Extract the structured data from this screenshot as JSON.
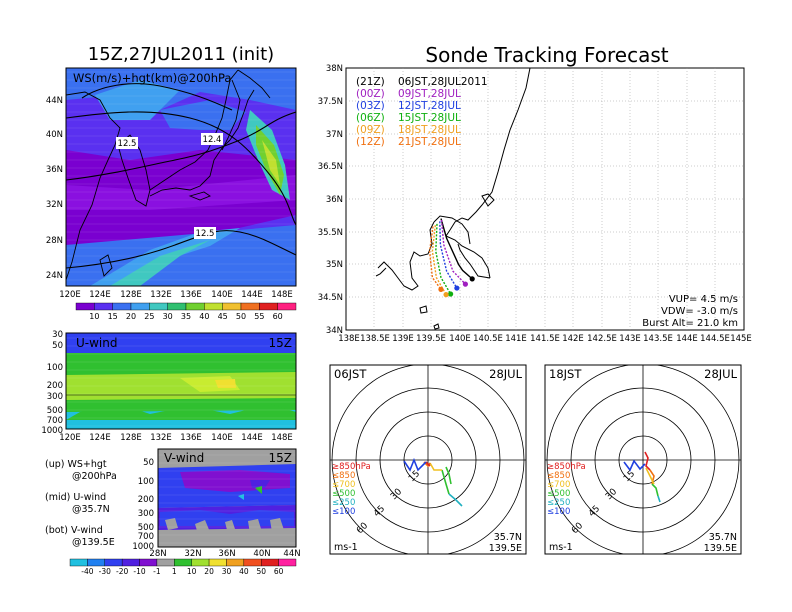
{
  "left_title": "15Z,27JUL2011 (init)",
  "right_title": "Sonde Tracking Forecast",
  "colors": {
    "bg": "#ffffff",
    "frame": "#000000",
    "track_21z": "#000000",
    "track_00z": "#a020c0",
    "track_03z": "#2040e0",
    "track_06z": "#10b010",
    "track_09z": "#f0a020",
    "track_12z": "#f07010"
  },
  "panels": {
    "ws": {
      "label": "WS(m/s)+hgt(km)@200hPa",
      "lat_labels": [
        "44N",
        "40N",
        "36N",
        "32N",
        "28N",
        "24N"
      ],
      "lon_labels": [
        "120E",
        "124E",
        "128E",
        "132E",
        "136E",
        "140E",
        "144E",
        "148E"
      ],
      "contour_labels": [
        "12.5",
        "12.4",
        "12.5"
      ]
    },
    "ws_colorbar": {
      "labels": [
        "10",
        "15",
        "20",
        "25",
        "30",
        "35",
        "40",
        "45",
        "50",
        "55",
        "60"
      ],
      "colors": [
        "#7a00d0",
        "#5a30f0",
        "#3a70f0",
        "#40a0f0",
        "#40c8c0",
        "#30c070",
        "#70d030",
        "#c0e030",
        "#f0c030",
        "#f07020",
        "#e02020",
        "#ff2080"
      ]
    },
    "uwind": {
      "label": "U-wind",
      "time": "15Z",
      "p_labels": [
        "30",
        "50",
        "100",
        "200",
        "300",
        "500",
        "700",
        "1000"
      ],
      "lon_labels": [
        "120E",
        "124E",
        "128E",
        "132E",
        "136E",
        "140E",
        "144E",
        "148E"
      ]
    },
    "vwind": {
      "label": "V-wind",
      "time": "15Z",
      "p_labels": [
        "50",
        "100",
        "200",
        "300",
        "500",
        "700",
        "1000"
      ],
      "lat_labels": [
        "28N",
        "32N",
        "36N",
        "40N",
        "44N"
      ]
    },
    "wind_colorbar": {
      "labels": [
        "-40",
        "-30",
        "-20",
        "-10",
        "-1",
        "1",
        "10",
        "20",
        "30",
        "40",
        "50",
        "60"
      ],
      "colors": [
        "#20c0e0",
        "#2080f0",
        "#3040f0",
        "#5020e0",
        "#8010d0",
        "#a0a0a0",
        "#30c030",
        "#a0e030",
        "#f0e030",
        "#f0a020",
        "#f05020",
        "#e02020",
        "#ff20a0"
      ]
    },
    "legend_notes": [
      {
        "label": "(up) WS+hgt",
        "sub": "@200hPa"
      },
      {
        "label": "(mid) U-wind",
        "sub": "@35.7N"
      },
      {
        "label": "(bot) V-wind",
        "sub": "@139.5E"
      }
    ],
    "track_map": {
      "lat_labels": [
        "38N",
        "37.5N",
        "37N",
        "36.5N",
        "36N",
        "35.5N",
        "35N",
        "34.5N",
        "34N"
      ],
      "lon_labels": [
        "138E",
        "138.5E",
        "139E",
        "139.5E",
        "140E",
        "140.5E",
        "141E",
        "141.5E",
        "142E",
        "142.5E",
        "143E",
        "143.5E",
        "144E",
        "144.5E",
        "145E"
      ],
      "launches": [
        {
          "code": "(21Z)",
          "time": "06JST,28JUL2011",
          "color": "#000000"
        },
        {
          "code": "(00Z)",
          "time": "09JST,28JUL",
          "color": "#a020c0"
        },
        {
          "code": "(03Z)",
          "time": "12JST,28JUL",
          "color": "#2040e0"
        },
        {
          "code": "(06Z)",
          "time": "15JST,28JUL",
          "color": "#10b010"
        },
        {
          "code": "(09Z)",
          "time": "18JST,28JUL",
          "color": "#f0a020"
        },
        {
          "code": "(12Z)",
          "time": "21JST,28JUL",
          "color": "#f07010"
        }
      ],
      "vup": "VUP=  4.5  m/s",
      "vdw": "VDW= -3.0  m/s",
      "burst": "Burst Alt= 21.0  km"
    },
    "hodo_left": {
      "time": "06JST",
      "date": "28JUL",
      "ring_labels": [
        "15",
        "30",
        "45",
        "60"
      ],
      "levels": [
        {
          "label": "≥850hPa",
          "color": "#e02020"
        },
        {
          "label": "≤850",
          "color": "#f07010"
        },
        {
          "label": "≤700",
          "color": "#f0c020"
        },
        {
          "label": "≤500",
          "color": "#30c030"
        },
        {
          "label": "≤250",
          "color": "#20b0c0"
        },
        {
          "label": "≤100",
          "color": "#2040e0"
        }
      ],
      "unit": "ms-1",
      "lat": "35.7N",
      "lon": "139.5E"
    },
    "hodo_right": {
      "time": "18JST",
      "date": "28JUL",
      "ring_labels": [
        "15",
        "30",
        "45",
        "60"
      ],
      "levels": [
        {
          "label": "≥850hPa",
          "color": "#e02020"
        },
        {
          "label": "≤850",
          "color": "#f07010"
        },
        {
          "label": "≤700",
          "color": "#f0c020"
        },
        {
          "label": "≤500",
          "color": "#30c030"
        },
        {
          "label": "≤250",
          "color": "#20b0c0"
        },
        {
          "label": "≤100",
          "color": "#2040e0"
        }
      ],
      "unit": "ms-1",
      "lat": "35.7N",
      "lon": "139.5E"
    }
  },
  "chart_data": [
    {
      "type": "heatmap",
      "title": "WS(m/s)+hgt(km)@200hPa",
      "x_range": [
        "120E",
        "150E"
      ],
      "y_range": [
        "22N",
        "47N"
      ],
      "contour_values": [
        12.5,
        12.4,
        12.5
      ]
    },
    {
      "type": "heatmap",
      "title": "U-wind",
      "x_range": [
        "120E",
        "150E"
      ],
      "y_range_hPa": [
        1000,
        30
      ]
    },
    {
      "type": "heatmap",
      "title": "V-wind",
      "x_range": [
        "28N",
        "44N"
      ],
      "y_range_hPa": [
        1000,
        50
      ]
    },
    {
      "type": "line",
      "title": "Sonde Tracking Forecast",
      "xlim": [
        138,
        145
      ],
      "ylim": [
        34,
        38
      ],
      "series": [
        {
          "name": "(21Z) 06JST,28JUL2011",
          "color": "#000000",
          "points": [
            [
              139.67,
              35.7
            ],
            [
              139.77,
              35.4
            ],
            [
              139.98,
              35.0
            ],
            [
              140.05,
              34.91
            ],
            [
              140.22,
              34.78
            ]
          ]
        },
        {
          "name": "(00Z) 09JST,28JUL",
          "color": "#a020c0",
          "points": [
            [
              139.68,
              35.68
            ],
            [
              139.72,
              35.3
            ],
            [
              139.88,
              34.9
            ],
            [
              140.1,
              34.7
            ]
          ]
        },
        {
          "name": "(03Z) 12JST,28JUL",
          "color": "#2040e0",
          "points": [
            [
              139.65,
              35.66
            ],
            [
              139.66,
              35.3
            ],
            [
              139.77,
              34.9
            ],
            [
              139.95,
              34.64
            ]
          ]
        },
        {
          "name": "(06Z) 15JST,28JUL",
          "color": "#10b010",
          "points": [
            [
              139.6,
              35.62
            ],
            [
              139.58,
              35.2
            ],
            [
              139.67,
              34.8
            ],
            [
              139.84,
              34.55
            ]
          ]
        },
        {
          "name": "(09Z) 18JST,28JUL",
          "color": "#f0a020",
          "points": [
            [
              139.57,
              35.6
            ],
            [
              139.52,
              35.2
            ],
            [
              139.59,
              34.8
            ],
            [
              139.76,
              34.54
            ]
          ]
        },
        {
          "name": "(12Z) 21JST,28JUL",
          "color": "#f07010",
          "points": [
            [
              139.53,
              35.58
            ],
            [
              139.47,
              35.2
            ],
            [
              139.52,
              34.8
            ],
            [
              139.67,
              34.62
            ]
          ]
        }
      ]
    }
  ]
}
